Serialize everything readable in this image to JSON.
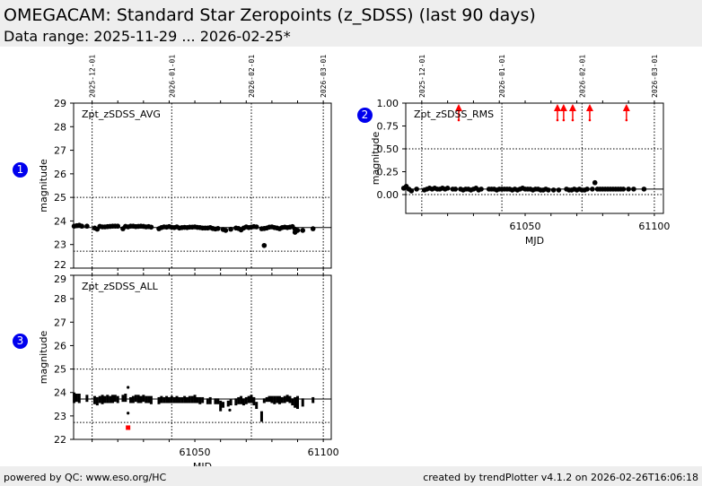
{
  "header": {
    "title": "OMEGACAM: Standard Star Zeropoints (z_SDSS) (last 90 days)",
    "subtitle": "Data range: 2025-11-29 ... 2026-02-25*"
  },
  "footer": {
    "left": "powered by QC: www.eso.org/HC",
    "right": "created by trendPlotter v4.1.2 on 2026-02-26T16:06:18"
  },
  "badges": [
    "1",
    "2",
    "3"
  ],
  "colors": {
    "points": "#000000",
    "outlier": "#ff0000",
    "badge": "#0000ee"
  },
  "chart_data": [
    {
      "type": "scatter",
      "name": "avg",
      "title": "Zpt_zSDSS_AVG",
      "ylabel": "magnitude",
      "xlabel": "",
      "xlim": [
        61002.8,
        61103.1
      ],
      "ylim": [
        22,
        29
      ],
      "yticks": [
        "22",
        "23",
        "24",
        "25",
        "26",
        "27",
        "28",
        "29"
      ],
      "ytick_values": [
        22,
        23,
        24,
        25,
        26,
        27,
        28,
        29
      ],
      "date_ticks": [
        {
          "label": "2025-12-01",
          "mjd": 61010
        },
        {
          "label": "2026-01-01",
          "mjd": 61041
        },
        {
          "label": "2026-02-01",
          "mjd": 61072
        },
        {
          "label": "2026-03-01",
          "mjd": 61100
        }
      ],
      "ref_line": 23.72,
      "limits": [
        22.72,
        25.0
      ],
      "x": [
        61003,
        61004,
        61005,
        61006,
        61008,
        61011,
        61012,
        61013,
        61014,
        61015,
        61016,
        61017,
        61018,
        61019,
        61020,
        61022,
        61023,
        61024,
        61025,
        61026,
        61027,
        61028,
        61029,
        61030,
        61031,
        61032,
        61033,
        61036,
        61037,
        61038,
        61039,
        61040,
        61041,
        61042,
        61043,
        61044,
        61045,
        61046,
        61047,
        61048,
        61049,
        61050,
        61051,
        61052,
        61053,
        61054,
        61055,
        61056,
        61057,
        61058,
        61059,
        61061,
        61062,
        61064,
        61066,
        61067,
        61068,
        61069,
        61070,
        61071,
        61072,
        61073,
        61074,
        61076,
        61077,
        61077,
        61078,
        61079,
        61080,
        61081,
        61082,
        61083,
        61084,
        61085,
        61086,
        61087,
        61088,
        61089,
        61089,
        61090,
        61092,
        61096
      ],
      "y": [
        23.78,
        23.8,
        23.82,
        23.78,
        23.78,
        23.7,
        23.65,
        23.77,
        23.75,
        23.75,
        23.76,
        23.77,
        23.78,
        23.78,
        23.78,
        23.67,
        23.77,
        23.75,
        23.78,
        23.78,
        23.76,
        23.77,
        23.78,
        23.77,
        23.75,
        23.76,
        23.74,
        23.67,
        23.72,
        23.75,
        23.74,
        23.76,
        23.73,
        23.72,
        23.75,
        23.7,
        23.72,
        23.73,
        23.72,
        23.74,
        23.74,
        23.75,
        23.73,
        23.72,
        23.7,
        23.7,
        23.7,
        23.72,
        23.68,
        23.66,
        23.68,
        23.64,
        23.6,
        23.65,
        23.7,
        23.68,
        23.62,
        23.7,
        23.75,
        23.72,
        23.74,
        23.76,
        23.75,
        23.67,
        22.96,
        23.68,
        23.7,
        23.74,
        23.75,
        23.72,
        23.7,
        23.67,
        23.72,
        23.74,
        23.72,
        23.74,
        23.76,
        23.65,
        23.52,
        23.6,
        23.6,
        23.67
      ]
    },
    {
      "type": "scatter",
      "name": "rms",
      "title": "Zpt_zSDSS_RMS",
      "ylabel": "magnitude",
      "xlabel": "MJD",
      "xlim": [
        61003.8,
        61103.5
      ],
      "ylim": [
        -0.206,
        1.0
      ],
      "yticks": [
        "0.00",
        "0.25",
        "0.50",
        "0.75",
        "1.00"
      ],
      "ytick_values": [
        0,
        0.25,
        0.5,
        0.75,
        1.0
      ],
      "xticks": [
        "61050",
        "61100"
      ],
      "xtick_values": [
        61050,
        61100
      ],
      "date_ticks": [
        {
          "label": "2025-12-01",
          "mjd": 61010
        },
        {
          "label": "2026-01-01",
          "mjd": 61041
        },
        {
          "label": "2026-02-01",
          "mjd": 61072
        },
        {
          "label": "2026-03-01",
          "mjd": 61100
        }
      ],
      "ref_line": 0.06,
      "limits": [
        0.0,
        0.5
      ],
      "x": [
        61003,
        61004,
        61005,
        61006,
        61008,
        61011,
        61012,
        61013,
        61014,
        61015,
        61016,
        61017,
        61018,
        61019,
        61020,
        61022,
        61023,
        61025,
        61026,
        61027,
        61028,
        61029,
        61030,
        61031,
        61032,
        61033,
        61036,
        61037,
        61038,
        61039,
        61040,
        61041,
        61042,
        61043,
        61044,
        61045,
        61046,
        61047,
        61048,
        61049,
        61050,
        61051,
        61052,
        61053,
        61054,
        61055,
        61056,
        61057,
        61058,
        61059,
        61061,
        61063,
        61066,
        61067,
        61068,
        61069,
        61070,
        61071,
        61072,
        61073,
        61074,
        61076,
        61077,
        61078,
        61079,
        61080,
        61081,
        61082,
        61083,
        61084,
        61085,
        61086,
        61087,
        61088,
        61090,
        61092,
        61096
      ],
      "y": [
        0.07,
        0.09,
        0.06,
        0.04,
        0.06,
        0.05,
        0.06,
        0.07,
        0.06,
        0.07,
        0.06,
        0.06,
        0.07,
        0.06,
        0.07,
        0.06,
        0.06,
        0.06,
        0.05,
        0.06,
        0.06,
        0.05,
        0.06,
        0.07,
        0.05,
        0.06,
        0.06,
        0.06,
        0.06,
        0.05,
        0.06,
        0.06,
        0.06,
        0.06,
        0.06,
        0.05,
        0.06,
        0.05,
        0.06,
        0.07,
        0.06,
        0.06,
        0.06,
        0.05,
        0.06,
        0.06,
        0.05,
        0.05,
        0.06,
        0.05,
        0.05,
        0.05,
        0.06,
        0.05,
        0.05,
        0.06,
        0.05,
        0.06,
        0.05,
        0.05,
        0.06,
        0.06,
        0.13,
        0.06,
        0.06,
        0.06,
        0.06,
        0.06,
        0.06,
        0.06,
        0.06,
        0.06,
        0.06,
        0.06,
        0.06,
        0.06,
        0.06
      ],
      "clipped_above_x": [
        61024.3,
        61062.5,
        61064.9,
        61068.4,
        61075.0,
        61089.2
      ]
    },
    {
      "type": "scatter",
      "name": "all",
      "title": "Zpt_zSDSS_ALL",
      "ylabel": "magnitude",
      "xlabel": "MJD",
      "xlim": [
        61002.8,
        61103.1
      ],
      "ylim": [
        22,
        29
      ],
      "yticks": [
        "22",
        "23",
        "24",
        "25",
        "26",
        "27",
        "28",
        "29"
      ],
      "ytick_values": [
        22,
        23,
        24,
        25,
        26,
        27,
        28,
        29
      ],
      "xticks": [
        "61050",
        "61100"
      ],
      "xtick_values": [
        61050,
        61100
      ],
      "date_grid": [
        61010,
        61041,
        61072,
        61100
      ],
      "ref_line": 23.72,
      "limits": [
        22.72,
        25.0
      ],
      "night_ranges": [
        [
          61003,
          23.55,
          24.0
        ],
        [
          61004,
          23.6,
          23.95
        ],
        [
          61005,
          23.55,
          23.95
        ],
        [
          61008,
          23.6,
          23.9
        ],
        [
          61011,
          23.5,
          23.85
        ],
        [
          61012,
          23.45,
          23.8
        ],
        [
          61013,
          23.55,
          23.85
        ],
        [
          61014,
          23.5,
          23.9
        ],
        [
          61015,
          23.55,
          23.85
        ],
        [
          61016,
          23.55,
          23.9
        ],
        [
          61017,
          23.55,
          23.85
        ],
        [
          61018,
          23.55,
          23.9
        ],
        [
          61019,
          23.6,
          23.9
        ],
        [
          61020,
          23.55,
          23.85
        ],
        [
          61022,
          23.6,
          23.9
        ],
        [
          61023,
          23.6,
          23.95
        ],
        [
          61025,
          23.55,
          23.8
        ],
        [
          61026,
          23.55,
          23.85
        ],
        [
          61027,
          23.6,
          23.9
        ],
        [
          61028,
          23.55,
          23.9
        ],
        [
          61029,
          23.55,
          23.85
        ],
        [
          61030,
          23.6,
          23.9
        ],
        [
          61031,
          23.55,
          23.85
        ],
        [
          61032,
          23.55,
          23.85
        ],
        [
          61033,
          23.5,
          23.85
        ],
        [
          61036,
          23.5,
          23.8
        ],
        [
          61037,
          23.55,
          23.85
        ],
        [
          61038,
          23.55,
          23.8
        ],
        [
          61039,
          23.55,
          23.85
        ],
        [
          61040,
          23.55,
          23.8
        ],
        [
          61041,
          23.55,
          23.85
        ],
        [
          61042,
          23.55,
          23.8
        ],
        [
          61043,
          23.55,
          23.85
        ],
        [
          61044,
          23.55,
          23.8
        ],
        [
          61045,
          23.55,
          23.8
        ],
        [
          61046,
          23.55,
          23.85
        ],
        [
          61047,
          23.55,
          23.8
        ],
        [
          61048,
          23.55,
          23.85
        ],
        [
          61049,
          23.55,
          23.85
        ],
        [
          61050,
          23.55,
          23.9
        ],
        [
          61051,
          23.55,
          23.8
        ],
        [
          61052,
          23.5,
          23.8
        ],
        [
          61053,
          23.55,
          23.8
        ],
        [
          61055,
          23.5,
          23.75
        ],
        [
          61056,
          23.5,
          23.8
        ],
        [
          61058,
          23.5,
          23.75
        ],
        [
          61059,
          23.5,
          23.75
        ],
        [
          61060,
          23.2,
          23.65
        ],
        [
          61061,
          23.35,
          23.6
        ],
        [
          61063,
          23.4,
          23.65
        ],
        [
          61064,
          23.45,
          23.7
        ],
        [
          61066,
          23.45,
          23.75
        ],
        [
          61067,
          23.5,
          23.8
        ],
        [
          61068,
          23.5,
          23.85
        ],
        [
          61069,
          23.45,
          23.75
        ],
        [
          61070,
          23.5,
          23.8
        ],
        [
          61071,
          23.55,
          23.85
        ],
        [
          61072,
          23.55,
          23.9
        ],
        [
          61073,
          23.45,
          23.8
        ],
        [
          61074,
          23.3,
          23.6
        ],
        [
          61076,
          22.75,
          23.2
        ],
        [
          61077,
          23.55,
          23.75
        ],
        [
          61078,
          23.6,
          23.8
        ],
        [
          61079,
          23.6,
          23.85
        ],
        [
          61080,
          23.55,
          23.85
        ],
        [
          61081,
          23.5,
          23.85
        ],
        [
          61082,
          23.55,
          23.85
        ],
        [
          61083,
          23.5,
          23.85
        ],
        [
          61084,
          23.55,
          23.8
        ],
        [
          61085,
          23.55,
          23.85
        ],
        [
          61086,
          23.6,
          23.9
        ],
        [
          61087,
          23.55,
          23.85
        ],
        [
          61088,
          23.45,
          23.75
        ],
        [
          61089,
          23.35,
          23.8
        ],
        [
          61090,
          23.3,
          23.85
        ],
        [
          61092,
          23.4,
          23.75
        ],
        [
          61096,
          23.55,
          23.8
        ]
      ],
      "single_points": [
        [
          61024,
          24.22
        ],
        [
          61024,
          23.12
        ],
        [
          61063.6,
          23.25
        ]
      ],
      "flagged_points": [
        [
          61024,
          22.5
        ]
      ]
    }
  ]
}
